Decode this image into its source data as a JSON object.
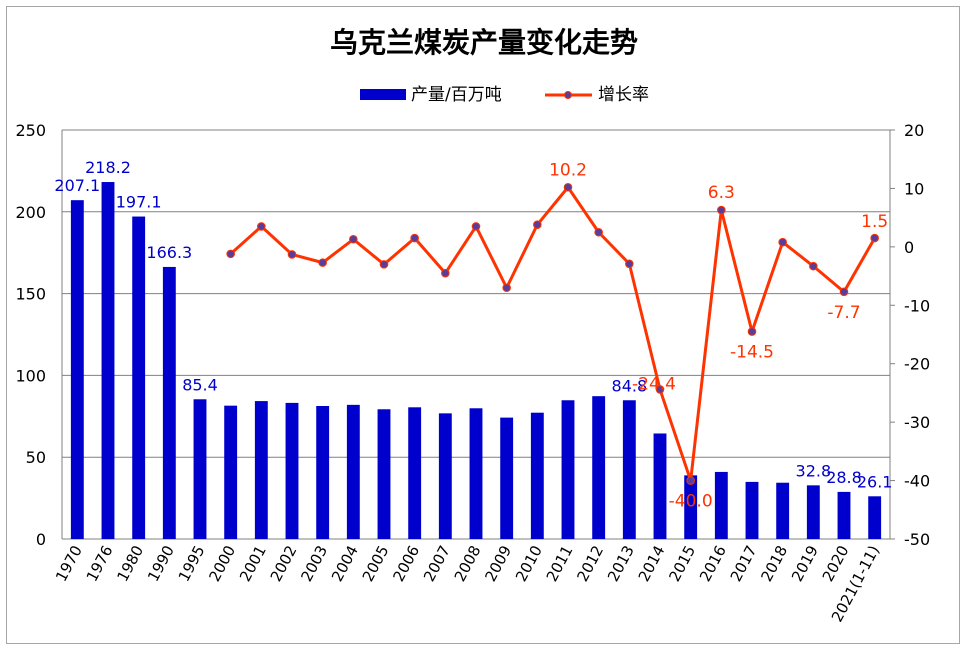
{
  "chart_data": {
    "type": "bar+line",
    "title": "乌克兰煤炭产量变化走势",
    "categories": [
      "1970",
      "1976",
      "1980",
      "1990",
      "1995",
      "2000",
      "2001",
      "2002",
      "2003",
      "2004",
      "2005",
      "2006",
      "2007",
      "2008",
      "2009",
      "2010",
      "2011",
      "2012",
      "2013",
      "2014",
      "2015",
      "2016",
      "2017",
      "2018",
      "2019",
      "2020",
      "2021(1-11)"
    ],
    "series": [
      {
        "name": "产量/百万吨",
        "type": "bar",
        "axis": "left",
        "color": "#0000cc",
        "values": [
          207.1,
          218.2,
          197.1,
          166.3,
          85.4,
          81.5,
          84.3,
          83.2,
          81.3,
          82.0,
          79.3,
          80.5,
          76.8,
          79.9,
          74.2,
          77.2,
          84.8,
          87.3,
          84.8,
          64.5,
          38.9,
          41.0,
          34.9,
          34.4,
          32.8,
          28.8,
          26.1
        ],
        "labels": [
          {
            "index": 0,
            "text": "207.1"
          },
          {
            "index": 1,
            "text": "218.2"
          },
          {
            "index": 2,
            "text": "197.1"
          },
          {
            "index": 3,
            "text": "166.3"
          },
          {
            "index": 4,
            "text": "85.4"
          },
          {
            "index": 18,
            "text": "84.8"
          },
          {
            "index": 24,
            "text": "32.8"
          },
          {
            "index": 25,
            "text": "28.8"
          },
          {
            "index": 26,
            "text": "26.1"
          }
        ]
      },
      {
        "name": "增长率",
        "type": "line",
        "axis": "right",
        "color": "#ff3300",
        "marker_color": "#5a3d9a",
        "values": [
          null,
          null,
          null,
          null,
          null,
          -1.2,
          3.5,
          -1.3,
          -2.7,
          1.3,
          -3.0,
          1.5,
          -4.5,
          3.5,
          -7.0,
          3.8,
          10.2,
          2.5,
          -2.9,
          -24.4,
          -40.0,
          6.3,
          -14.5,
          0.8,
          -3.3,
          -7.7,
          1.5
        ],
        "labels": [
          {
            "index": 16,
            "text": "10.2"
          },
          {
            "index": 19,
            "text": "-24.4"
          },
          {
            "index": 20,
            "text": "-40.0"
          },
          {
            "index": 21,
            "text": "6.3"
          },
          {
            "index": 22,
            "text": "-14.5"
          },
          {
            "index": 25,
            "text": "-7.7"
          },
          {
            "index": 26,
            "text": "1.5"
          }
        ]
      }
    ],
    "y_left": {
      "min": 0,
      "max": 250,
      "ticks": [
        "0",
        "50",
        "100",
        "150",
        "200",
        "250"
      ]
    },
    "y_right": {
      "min": -50,
      "max": 20,
      "ticks": [
        "-50",
        "-40",
        "-30",
        "-20",
        "-10",
        "0",
        "10",
        "20"
      ]
    },
    "grid": true,
    "legend_position": "top-center",
    "gridline_color": "#808080",
    "axis_color": "#808080"
  }
}
